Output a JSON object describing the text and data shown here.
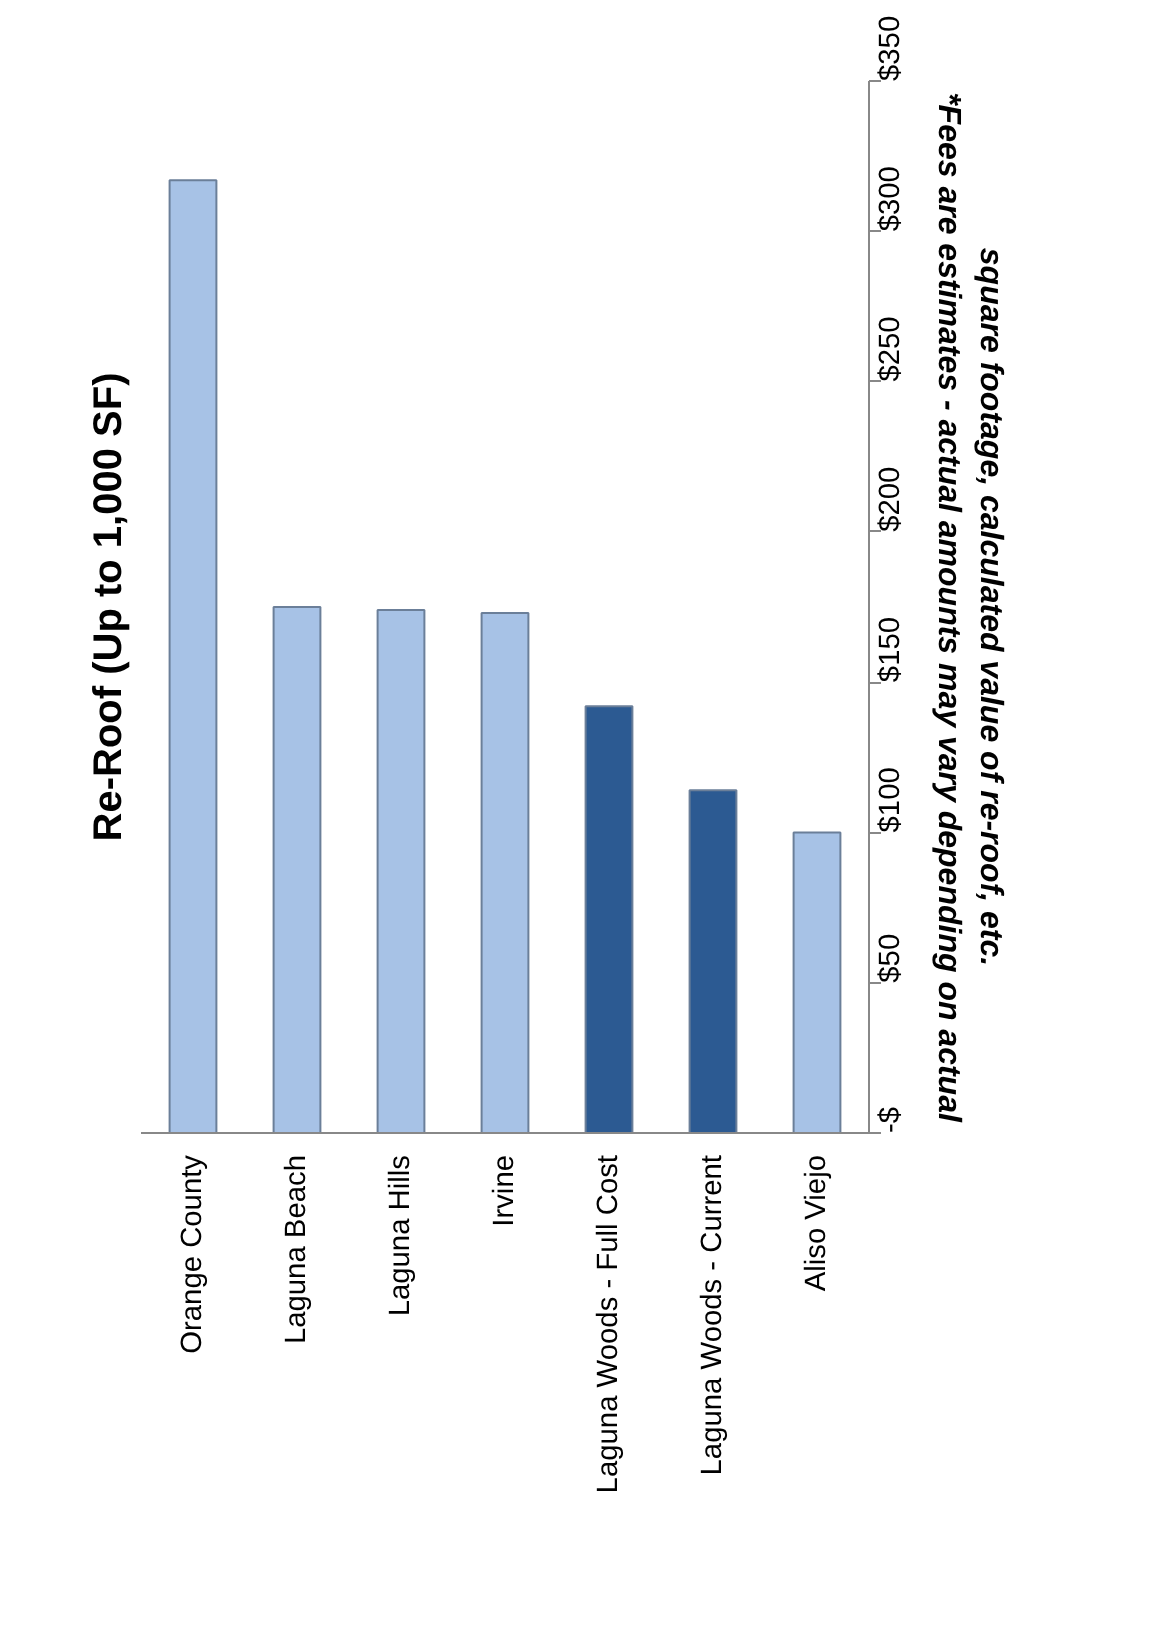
{
  "chart_data": {
    "type": "bar",
    "title": "Re-Roof (Up to 1,000 SF)",
    "categories": [
      "Orange County",
      "Laguna Beach",
      "Laguna Hills",
      "Irvine",
      "Laguna Woods - Full Cost",
      "Laguna Woods - Current",
      "Aliso Viejo"
    ],
    "values": [
      317,
      175,
      174,
      173,
      142,
      114,
      100
    ],
    "colors": [
      "#a7c2e6",
      "#a7c2e6",
      "#a7c2e6",
      "#a7c2e6",
      "#2c5a92",
      "#2c5a92",
      "#a7c2e6"
    ],
    "ylim": [
      0,
      350
    ],
    "yticks": [
      {
        "value": 0,
        "label": "-$"
      },
      {
        "value": 50,
        "label": "$50"
      },
      {
        "value": 100,
        "label": "$100"
      },
      {
        "value": 150,
        "label": "$150"
      },
      {
        "value": 200,
        "label": "$200"
      },
      {
        "value": 250,
        "label": "$250"
      },
      {
        "value": 300,
        "label": "$300"
      },
      {
        "value": 350,
        "label": "$350"
      }
    ],
    "grid": false,
    "annotations": [
      "*Fees are estimates - actual amounts may vary depending on actual square footage, calculated value of re-roof, etc."
    ]
  }
}
